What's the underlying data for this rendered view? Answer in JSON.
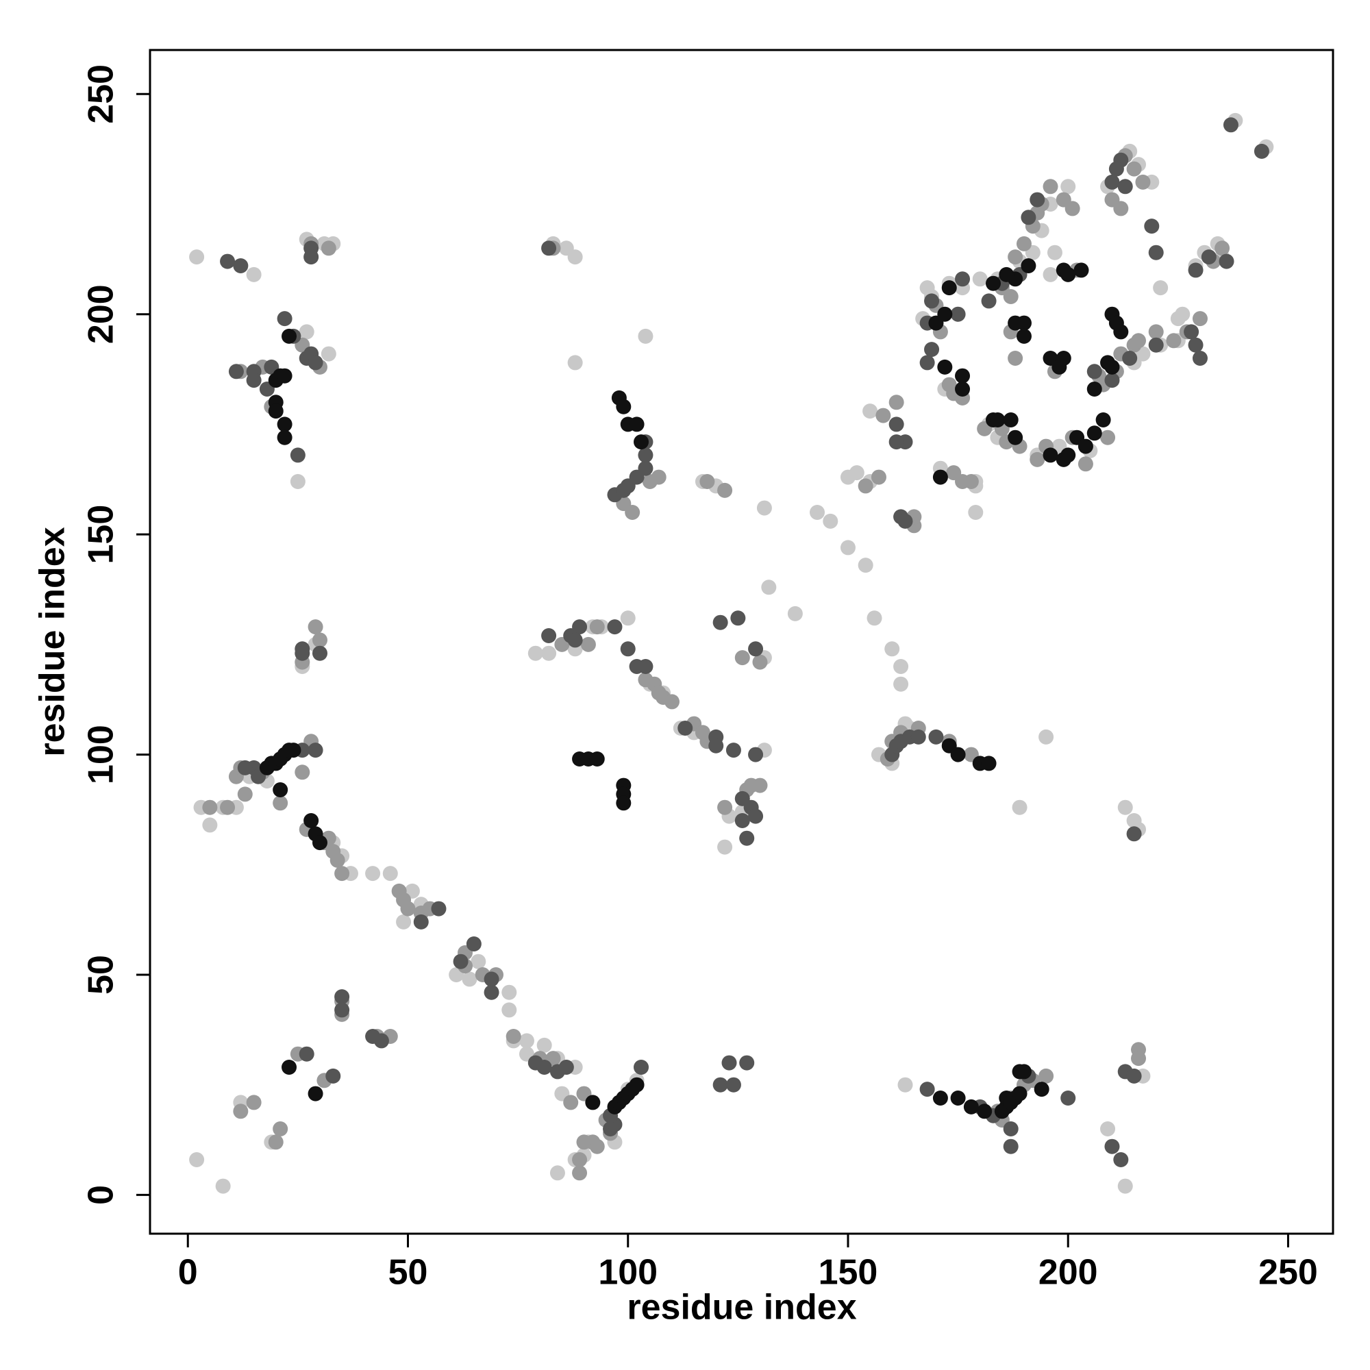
{
  "chart_data": {
    "type": "scatter",
    "xlabel": "residue index",
    "ylabel": "residue index",
    "xlim": [
      -8.6,
      260.2
    ],
    "ylim": [
      -8.8,
      260
    ],
    "xticks": [
      0,
      50,
      100,
      150,
      200,
      250
    ],
    "yticks": [
      0,
      50,
      100,
      150,
      200,
      250
    ],
    "series": [
      {
        "color": "#c8c8c8",
        "x": [
          2,
          15,
          27,
          31,
          33,
          83,
          86,
          88,
          104,
          88,
          32,
          27,
          25,
          2,
          8,
          12,
          19,
          3,
          5,
          8,
          11,
          14,
          18,
          26,
          29,
          33,
          35,
          37,
          42,
          46,
          49,
          53,
          51,
          61,
          64,
          66,
          73,
          73,
          74,
          77,
          77,
          81,
          84,
          88,
          85,
          84,
          88,
          90,
          91,
          97,
          100,
          102,
          103,
          79,
          82,
          88,
          92,
          94,
          100,
          105,
          108,
          112,
          115,
          120,
          123,
          122,
          126,
          131,
          131,
          132,
          138,
          131,
          117,
          120,
          143,
          146,
          150,
          152,
          155,
          155,
          150,
          154,
          156,
          160,
          162,
          162,
          164,
          163,
          160,
          157,
          163,
          179,
          179,
          189,
          195,
          213,
          215,
          216,
          209,
          213,
          217,
          182,
          184,
          193,
          198,
          205,
          215,
          217,
          221,
          225,
          221,
          225,
          226,
          229,
          231,
          234,
          235,
          238,
          245,
          214,
          216,
          219,
          209,
          200,
          196,
          194,
          192,
          189,
          184,
          180,
          196,
          197,
          167,
          169,
          168,
          173,
          176,
          172,
          176,
          179,
          171
        ],
        "y": [
          213,
          209,
          217,
          216,
          216,
          216,
          215,
          213,
          195,
          189,
          191,
          196,
          162,
          8,
          2,
          21,
          12,
          88,
          84,
          88,
          88,
          95,
          94,
          120,
          125,
          80,
          77,
          73,
          73,
          73,
          62,
          66,
          69,
          50,
          49,
          53,
          46,
          42,
          35,
          35,
          32,
          34,
          31,
          29,
          23,
          5,
          8,
          9,
          12,
          12,
          24,
          26,
          29,
          123,
          123,
          124,
          129,
          129,
          131,
          116,
          114,
          106,
          105,
          104,
          86,
          79,
          87,
          101,
          122,
          138,
          132,
          156,
          162,
          161,
          155,
          153,
          163,
          164,
          162,
          178,
          147,
          143,
          131,
          124,
          120,
          116,
          106,
          107,
          98,
          100,
          25,
          155,
          161,
          88,
          104,
          88,
          85,
          83,
          15,
          2,
          27,
          175,
          172,
          168,
          170,
          169,
          189,
          191,
          193,
          194,
          206,
          199,
          200,
          211,
          214,
          216,
          213,
          244,
          238,
          237,
          234,
          230,
          229,
          229,
          225,
          219,
          214,
          212,
          208,
          208,
          209,
          214,
          199,
          204,
          206,
          207,
          206,
          183,
          181,
          162,
          165
        ]
      },
      {
        "color": "#999999",
        "x": [
          11,
          12,
          9,
          5,
          13,
          17,
          21,
          26,
          28,
          29,
          30,
          26,
          32,
          31,
          33,
          34,
          27,
          35,
          12,
          15,
          20,
          21,
          25,
          31,
          35,
          35,
          43,
          46,
          48,
          49,
          50,
          55,
          53,
          63,
          63,
          67,
          70,
          74,
          80,
          83,
          86,
          87,
          90,
          90,
          92,
          93,
          96,
          95,
          89,
          89,
          91,
          85,
          93,
          104,
          106,
          107,
          108,
          110,
          115,
          117,
          118,
          122,
          127,
          128,
          130,
          130,
          126,
          83,
          99,
          101,
          105,
          107,
          118,
          122,
          157,
          154,
          165,
          165,
          160,
          159,
          162,
          166,
          173,
          178,
          12,
          17,
          19,
          26,
          30,
          28,
          32,
          158,
          161,
          170,
          171,
          173,
          174,
          176,
          178,
          174,
          176,
          185,
          188,
          190,
          192,
          193,
          194,
          196,
          199,
          201,
          202,
          207,
          208,
          211,
          212,
          215,
          216,
          220,
          224,
          227,
          230,
          233,
          235,
          213,
          215,
          217,
          210,
          212,
          197,
          195,
          201,
          204,
          209,
          187,
          187,
          188,
          186,
          185,
          181,
          189,
          193,
          187,
          190,
          192,
          195,
          185,
          184,
          216,
          216
        ],
        "y": [
          95,
          97,
          88,
          88,
          91,
          96,
          89,
          96,
          103,
          129,
          126,
          121,
          81,
          80,
          78,
          76,
          83,
          73,
          19,
          21,
          12,
          15,
          32,
          26,
          41,
          44,
          36,
          36,
          69,
          67,
          65,
          65,
          64,
          55,
          52,
          50,
          50,
          36,
          31,
          31,
          29,
          21,
          23,
          12,
          12,
          11,
          14,
          17,
          5,
          8,
          125,
          125,
          129,
          117,
          116,
          114,
          113,
          112,
          107,
          105,
          103,
          88,
          92,
          93,
          93,
          121,
          122,
          215,
          157,
          155,
          162,
          163,
          162,
          160,
          163,
          161,
          152,
          154,
          103,
          99,
          105,
          106,
          103,
          100,
          187,
          188,
          179,
          193,
          188,
          216,
          215,
          177,
          180,
          202,
          196,
          184,
          182,
          181,
          162,
          164,
          162,
          206,
          213,
          216,
          220,
          223,
          225,
          229,
          226,
          224,
          210,
          186,
          184,
          187,
          191,
          193,
          194,
          196,
          194,
          196,
          199,
          212,
          215,
          236,
          233,
          230,
          226,
          224,
          187,
          170,
          172,
          166,
          172,
          204,
          196,
          190,
          171,
          174,
          174,
          170,
          167,
          22,
          25,
          26,
          27,
          17,
          19,
          33,
          31
        ]
      },
      {
        "color": "#555555",
        "x": [
          26,
          26,
          30,
          29,
          26,
          15,
          13,
          16,
          11,
          15,
          15,
          18,
          19,
          22,
          24,
          25,
          27,
          28,
          29,
          28,
          28,
          9,
          12,
          82,
          97,
          99,
          100,
          102,
          104,
          104,
          104,
          97,
          100,
          102,
          104,
          89,
          87,
          82,
          88,
          113,
          120,
          120,
          124,
          125,
          121,
          129,
          126,
          128,
          129,
          126,
          127,
          129,
          65,
          57,
          53,
          62,
          69,
          69,
          35,
          35,
          42,
          44,
          27,
          33,
          79,
          81,
          84,
          86,
          96,
          97,
          96,
          103,
          121,
          124,
          123,
          127,
          168,
          180,
          183,
          187,
          187,
          191,
          200,
          210,
          212,
          213,
          215,
          215,
          160,
          161,
          162,
          164,
          166,
          170,
          162,
          163,
          161,
          163,
          161,
          169,
          168,
          169,
          168,
          175,
          176,
          182,
          185,
          189,
          193,
          191,
          206,
          210,
          214,
          220,
          220,
          228,
          229,
          236,
          232,
          229,
          212,
          210,
          211,
          213,
          230,
          237,
          244,
          219
        ],
        "y": [
          124,
          123,
          123,
          101,
          101,
          97,
          97,
          95,
          187,
          187,
          185,
          183,
          188,
          199,
          195,
          168,
          190,
          191,
          189,
          215,
          213,
          212,
          211,
          215,
          159,
          160,
          161,
          163,
          165,
          168,
          171,
          129,
          124,
          120,
          120,
          129,
          127,
          127,
          126,
          106,
          104,
          102,
          101,
          131,
          130,
          124,
          90,
          88,
          86,
          85,
          81,
          100,
          57,
          65,
          62,
          53,
          46,
          49,
          45,
          42,
          36,
          35,
          32,
          27,
          30,
          29,
          28,
          29,
          15,
          16,
          18,
          29,
          25,
          25,
          30,
          30,
          24,
          20,
          18,
          15,
          11,
          27,
          22,
          11,
          8,
          28,
          27,
          82,
          100,
          102,
          103,
          104,
          104,
          104,
          154,
          153,
          175,
          171,
          171,
          203,
          198,
          192,
          189,
          200,
          208,
          203,
          207,
          209,
          226,
          222,
          187,
          185,
          190,
          214,
          193,
          196,
          193,
          212,
          213,
          210,
          235,
          230,
          233,
          229,
          190,
          243,
          237,
          220
        ]
      },
      {
        "color": "#111111",
        "x": [
          18,
          19,
          20,
          21,
          22,
          23,
          24,
          21,
          20,
          21,
          22,
          20,
          20,
          22,
          22,
          23,
          98,
          99,
          100,
          102,
          103,
          89,
          91,
          93,
          99,
          99,
          99,
          28,
          29,
          30,
          23,
          29,
          92,
          97,
          98,
          99,
          100,
          101,
          102,
          171,
          175,
          178,
          181,
          185,
          186,
          186,
          187,
          188,
          189,
          189,
          190,
          194,
          173,
          175,
          180,
          182,
          171,
          170,
          172,
          173,
          172,
          176,
          176,
          183,
          184,
          187,
          188,
          188,
          190,
          190,
          191,
          196,
          198,
          199,
          196,
          199,
          200,
          202,
          204,
          206,
          208,
          210,
          211,
          212,
          209,
          210,
          206,
          199,
          200,
          203,
          188,
          186,
          183
        ],
        "y": [
          97,
          98,
          98,
          99,
          100,
          101,
          101,
          92,
          185,
          186,
          186,
          180,
          178,
          175,
          172,
          195,
          181,
          179,
          175,
          175,
          171,
          99,
          99,
          99,
          93,
          91,
          89,
          85,
          82,
          80,
          29,
          23,
          21,
          20,
          21,
          22,
          23,
          24,
          25,
          22,
          22,
          20,
          19,
          19,
          20,
          22,
          21,
          22,
          23,
          28,
          28,
          24,
          102,
          100,
          98,
          98,
          163,
          198,
          200,
          206,
          188,
          186,
          183,
          176,
          176,
          176,
          172,
          198,
          198,
          195,
          211,
          190,
          188,
          190,
          168,
          167,
          168,
          172,
          170,
          173,
          176,
          200,
          198,
          196,
          189,
          188,
          183,
          210,
          209,
          210,
          208,
          209,
          207
        ]
      }
    ]
  }
}
